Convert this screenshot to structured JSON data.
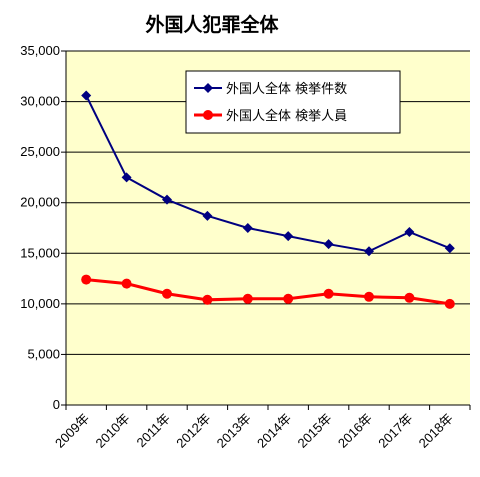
{
  "chart_data": {
    "type": "line",
    "title": "外国人犯罪全体",
    "categories": [
      "2009年",
      "2010年",
      "2011年",
      "2012年",
      "2013年",
      "2014年",
      "2015年",
      "2016年",
      "2017年",
      "2018年"
    ],
    "y_ticks": [
      "0",
      "5,000",
      "10,000",
      "15,000",
      "20,000",
      "25,000",
      "30,000",
      "35,000"
    ],
    "ylim": [
      0,
      35000
    ],
    "y_step": 5000,
    "series": [
      {
        "name": "外国人全体 検挙件数",
        "color": "#000080",
        "marker": "diamond",
        "values": [
          30600,
          22500,
          20300,
          18700,
          17500,
          16700,
          15900,
          15200,
          17100,
          15500
        ]
      },
      {
        "name": "外国人全体 検挙人員",
        "color": "#ff0000",
        "marker": "circle",
        "values": [
          12400,
          12000,
          11000,
          10400,
          10500,
          10500,
          11000,
          10700,
          10600,
          10000
        ]
      }
    ],
    "plot_background": "#ffffcc",
    "grid": true,
    "legend_position": "top-right"
  }
}
